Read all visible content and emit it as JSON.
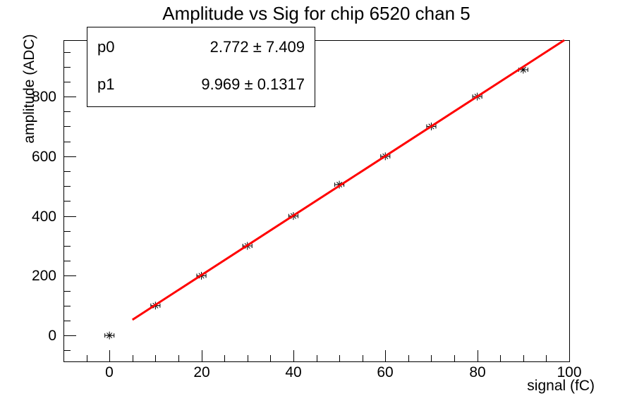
{
  "page": {
    "background": "#ffffff",
    "foreground": "#000000"
  },
  "title": "Amplitude vs Sig for chip 6520 chan 5",
  "stats_box": {
    "rows": [
      {
        "label": "p0",
        "value": "2.772 ± 7.409"
      },
      {
        "label": "p1",
        "value": "9.969 ± 0.1317"
      }
    ]
  },
  "chart_data": {
    "type": "scatter",
    "title": "Amplitude vs Sig for chip 6520 chan 5",
    "xlabel": "signal (fC)",
    "ylabel": "amplitude (ADC)",
    "xlim": [
      -10,
      100
    ],
    "ylim": [
      -87,
      989
    ],
    "x_major_ticks": [
      0,
      20,
      40,
      60,
      80,
      100
    ],
    "x_minor_step": 5,
    "y_major_ticks": [
      0,
      200,
      400,
      600,
      800
    ],
    "y_minor_step": 50,
    "grid": false,
    "legend": null,
    "points": {
      "x": [
        0,
        10,
        20,
        30,
        40,
        50,
        60,
        70,
        80,
        90
      ],
      "y": [
        0,
        100,
        200,
        300,
        400,
        505,
        600,
        700,
        800,
        890
      ],
      "xerr": 1.0,
      "marker": "asterisk",
      "color": "#000000"
    },
    "fit": {
      "type": "linear",
      "p0": 2.772,
      "p1": 9.969,
      "range_x": [
        5,
        100
      ],
      "color": "#ff0000",
      "width": 3
    }
  }
}
